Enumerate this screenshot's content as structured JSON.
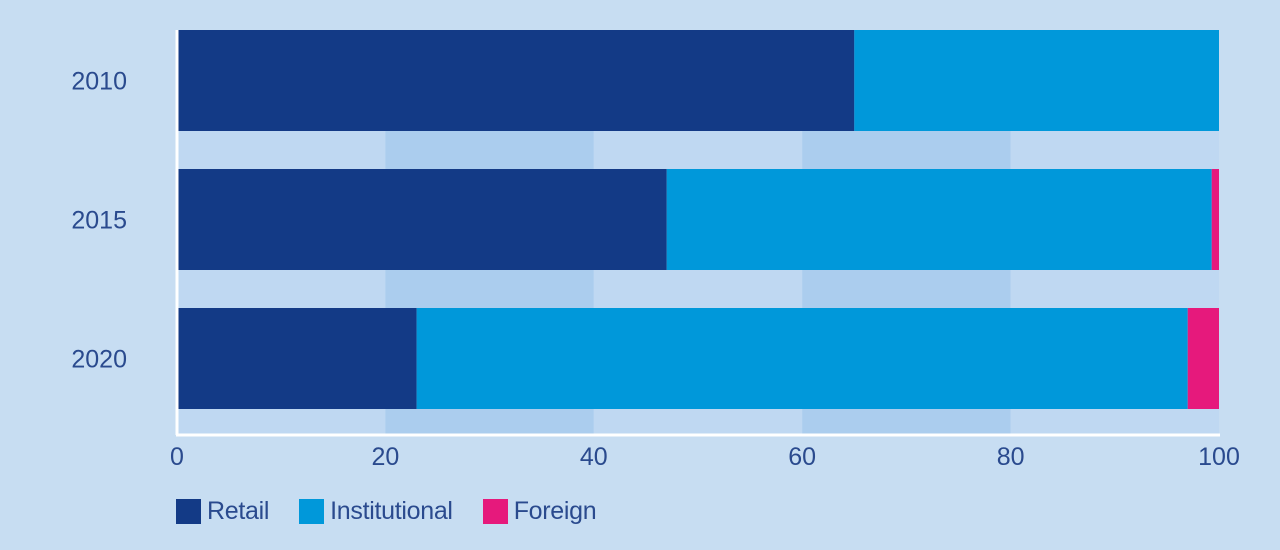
{
  "chart_data": {
    "type": "bar",
    "orientation": "horizontal",
    "stacked": true,
    "categories": [
      "2010",
      "2015",
      "2020"
    ],
    "series": [
      {
        "name": "Retail",
        "color": "#133a86",
        "values": [
          65,
          47,
          23
        ]
      },
      {
        "name": "Institutional",
        "color": "#0098da",
        "values": [
          35,
          52.3,
          74
        ]
      },
      {
        "name": "Foreign",
        "color": "#e6197c",
        "values": [
          0,
          0.7,
          3
        ]
      }
    ],
    "xlim": [
      0,
      100
    ],
    "xticks": [
      "0",
      "20",
      "40",
      "60",
      "80",
      "100"
    ],
    "title": "",
    "xlabel": "",
    "ylabel": "",
    "legend_position": "bottom-left",
    "colors": {
      "background": "#c7ddf2",
      "band_light": "#bfd8f2",
      "band_dark": "#abcdee",
      "axis": "#ffffff",
      "text": "#2a4a8e"
    }
  }
}
